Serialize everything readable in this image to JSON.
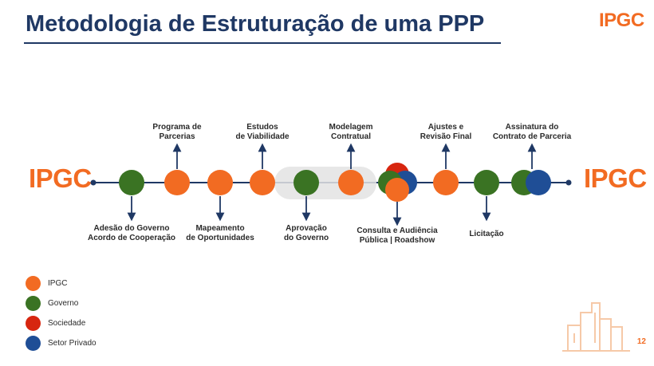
{
  "title": "Metodologia de Estruturação de uma PPP",
  "logo_text": "IPGC",
  "labels_above": [
    {
      "id": "programa",
      "line1": "Programa de",
      "line2": "Parcerias"
    },
    {
      "id": "estudos",
      "line1": "Estudos",
      "line2": "de Viabilidade"
    },
    {
      "id": "modelagem",
      "line1": "Modelagem",
      "line2": "Contratual"
    },
    {
      "id": "ajustes",
      "line1": "Ajustes e",
      "line2": "Revisão Final"
    },
    {
      "id": "assinatura",
      "line1": "Assinatura do",
      "line2": "Contrato de Parceria"
    }
  ],
  "labels_below": [
    {
      "id": "adesao",
      "line1": "Adesão do Governo",
      "line2": "Acordo de Cooperação"
    },
    {
      "id": "mapeamento",
      "line1": "Mapeamento",
      "line2": "de Oportunidades"
    },
    {
      "id": "aprovacao",
      "line1": "Aprovação",
      "line2": "do Governo"
    },
    {
      "id": "consulta",
      "line1": "Consulta e Audiência",
      "line2": "Pública | Roadshow"
    },
    {
      "id": "licitacao",
      "line1": "Licitação",
      "line2": ""
    }
  ],
  "legend": [
    {
      "label": "IPGC",
      "color": "#f26b22"
    },
    {
      "label": "Governo",
      "color": "#3a7323"
    },
    {
      "label": "Sociedade",
      "color": "#d7260f"
    },
    {
      "label": "Setor Privado",
      "color": "#1f4e96"
    }
  ],
  "colors": {
    "ipgc": "#f26b22",
    "governo": "#3a7323",
    "sociedade": "#d7260f",
    "setor_privado": "#1f4e96",
    "line": "#1f3864"
  },
  "page_number": "12"
}
